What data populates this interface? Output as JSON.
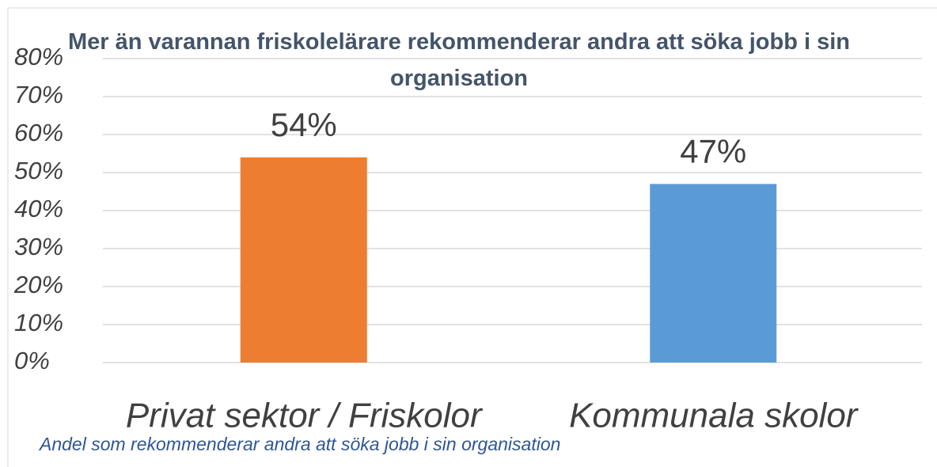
{
  "chart_data": {
    "type": "bar",
    "title": "Mer än varannan friskolelärare rekommenderar andra att söka jobb i sin organisation",
    "caption": "Andel som rekommenderar andra att söka jobb i sin organisation",
    "categories": [
      "Privat sektor / Friskolor",
      "Kommunala skolor"
    ],
    "values": [
      54,
      47
    ],
    "value_labels": [
      "54%",
      "47%"
    ],
    "colors": [
      "#ed7d31",
      "#5b9bd5"
    ],
    "ylim": [
      0,
      80
    ],
    "yticks": [
      {
        "value": 0,
        "label": "0%"
      },
      {
        "value": 10,
        "label": "10%"
      },
      {
        "value": 20,
        "label": "20%"
      },
      {
        "value": 30,
        "label": "30%"
      },
      {
        "value": 40,
        "label": "40%"
      },
      {
        "value": 50,
        "label": "50%"
      },
      {
        "value": 60,
        "label": "60%"
      },
      {
        "value": 70,
        "label": "70%"
      },
      {
        "value": 80,
        "label": "80%"
      }
    ],
    "grid": true
  }
}
